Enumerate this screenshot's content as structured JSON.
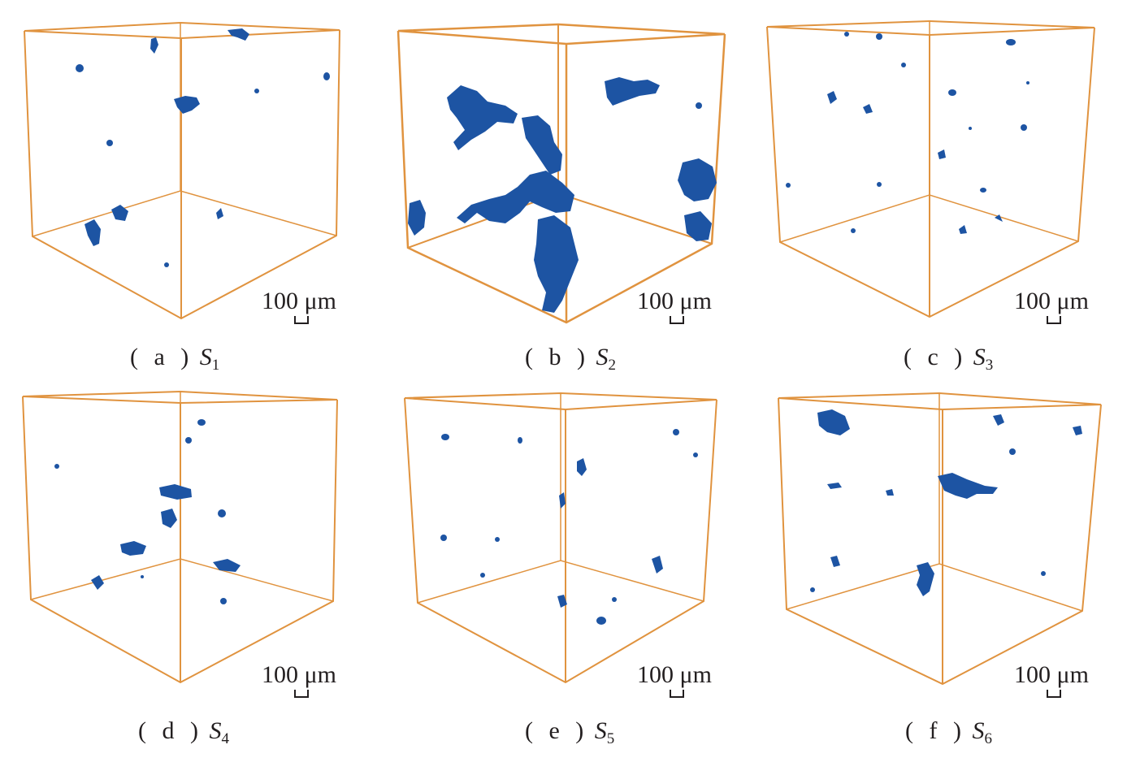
{
  "colors": {
    "frame": "#e0933f",
    "pores": "#1d54a3"
  },
  "panels": [
    {
      "id": "a",
      "label": "( a )",
      "symbol": "S",
      "subscript": "1",
      "scale_text": "100 μm"
    },
    {
      "id": "b",
      "label": "( b )",
      "symbol": "S",
      "subscript": "2",
      "scale_text": "100 μm"
    },
    {
      "id": "c",
      "label": "( c )",
      "symbol": "S",
      "subscript": "3",
      "scale_text": "100 μm"
    },
    {
      "id": "d",
      "label": "( d )",
      "symbol": "S",
      "subscript": "4",
      "scale_text": "100 μm"
    },
    {
      "id": "e",
      "label": "( e )",
      "symbol": "S",
      "subscript": "5",
      "scale_text": "100 μm"
    },
    {
      "id": "f",
      "label": "( f )",
      "symbol": "S",
      "subscript": "6",
      "scale_text": "100 μm"
    }
  ]
}
